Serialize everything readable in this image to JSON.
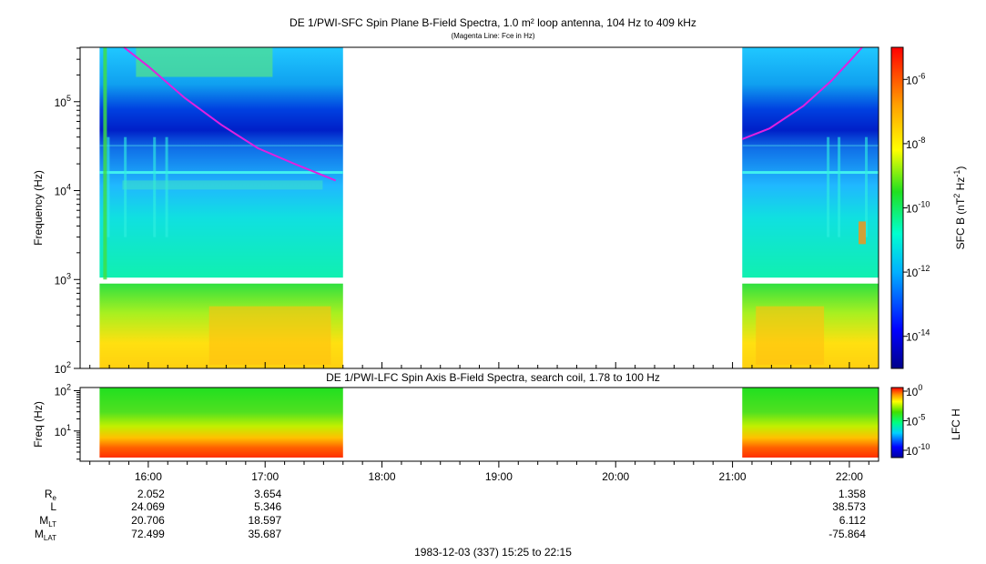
{
  "chart_data": [
    {
      "type": "heatmap",
      "title": "DE 1/PWI-SFC  Spin Plane B-Field Spectra, 1.0 m² loop antenna, 104 Hz to 409 kHz",
      "subtitle": "(Magenta Line: Fce in Hz)",
      "ylabel": "Frequency (Hz)",
      "yscale": "log",
      "ylim": [
        100,
        409000
      ],
      "yticks": [
        {
          "base": "10",
          "exp": "2"
        },
        {
          "base": "10",
          "exp": "3"
        },
        {
          "base": "10",
          "exp": "4"
        },
        {
          "base": "10",
          "exp": "5"
        }
      ],
      "data_intervals_ut": [
        [
          "15:35",
          "17:40"
        ],
        [
          "21:05",
          "22:15"
        ]
      ],
      "fce_line_color": "#e020e0",
      "colorbar": {
        "label_main": "SFC B (nT",
        "label_sup1": "2",
        "label_mid": " Hz",
        "label_sup2": "-1",
        "label_end": ")",
        "scale": "log",
        "range": [
          1e-15,
          1e-05
        ],
        "ticks": [
          {
            "base": "10",
            "exp": "-6"
          },
          {
            "base": "10",
            "exp": "-8"
          },
          {
            "base": "10",
            "exp": "-10"
          },
          {
            "base": "10",
            "exp": "-12"
          },
          {
            "base": "10",
            "exp": "-14"
          }
        ]
      }
    },
    {
      "type": "heatmap",
      "title": "DE 1/PWI-LFC  Spin Axis B-Field Spectra, search coil, 1.78 to 100 Hz",
      "ylabel": "Freq (Hz)",
      "yscale": "log",
      "ylim": [
        1.78,
        120
      ],
      "yticks": [
        {
          "base": "10",
          "exp": "1"
        },
        {
          "base": "10",
          "exp": "2"
        }
      ],
      "colorbar": {
        "label": "LFC H",
        "scale": "log",
        "ticks": [
          {
            "base": "10",
            "exp": "0"
          },
          {
            "base": "10",
            "exp": "-5"
          },
          {
            "base": "10",
            "exp": "-10"
          }
        ]
      }
    }
  ],
  "time_axis": {
    "labels": [
      "16:00",
      "17:00",
      "18:00",
      "19:00",
      "20:00",
      "21:00",
      "22:00"
    ],
    "start": "15:25",
    "end": "22:15"
  },
  "ephemeris": {
    "rows": [
      {
        "name": "R",
        "sub": "e",
        "values": [
          "2.052",
          "3.654",
          "1.358"
        ]
      },
      {
        "name": "L",
        "sub": "",
        "values": [
          "24.069",
          "5.346",
          "38.573"
        ]
      },
      {
        "name": "M",
        "sub": "LT",
        "values": [
          "20.706",
          "18.597",
          "6.112"
        ]
      },
      {
        "name": "M",
        "sub": "LAT",
        "values": [
          "72.499",
          "35.687",
          "-75.864"
        ]
      }
    ],
    "value_times": [
      "16:00",
      "17:00",
      "22:00"
    ]
  },
  "footer": "1983-12-03 (337) 15:25 to 22:15"
}
